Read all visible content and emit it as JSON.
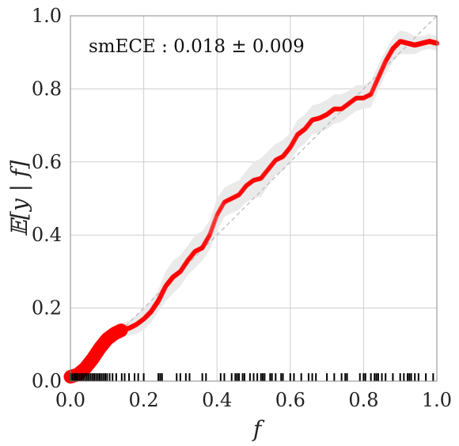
{
  "chart_data": {
    "type": "line",
    "title": "",
    "annotation": "smECE : 0.018 ± 0.009",
    "xlabel": "f",
    "ylabel": "𝔼[y | f]",
    "xlim": [
      0.0,
      1.0
    ],
    "ylim": [
      0.0,
      1.0
    ],
    "xticks": [
      "0.0",
      "0.2",
      "0.4",
      "0.6",
      "0.8",
      "1.0"
    ],
    "yticks": [
      "0.0",
      "0.2",
      "0.4",
      "0.6",
      "0.8",
      "1.0"
    ],
    "grid": true,
    "diagonal": [
      [
        0.0,
        0.0
      ],
      [
        1.0,
        1.0
      ]
    ],
    "curve": {
      "x": [
        0.0,
        0.02,
        0.04,
        0.06,
        0.08,
        0.1,
        0.12,
        0.14,
        0.16,
        0.18,
        0.2,
        0.22,
        0.24,
        0.26,
        0.28,
        0.3,
        0.32,
        0.34,
        0.36,
        0.38,
        0.4,
        0.42,
        0.44,
        0.46,
        0.48,
        0.5,
        0.52,
        0.54,
        0.56,
        0.58,
        0.6,
        0.62,
        0.64,
        0.66,
        0.68,
        0.7,
        0.72,
        0.74,
        0.76,
        0.78,
        0.8,
        0.82,
        0.84,
        0.86,
        0.88,
        0.9,
        0.92,
        0.94,
        0.96,
        0.98,
        1.0
      ],
      "y": [
        0.012,
        0.018,
        0.035,
        0.06,
        0.09,
        0.115,
        0.13,
        0.14,
        0.145,
        0.155,
        0.17,
        0.19,
        0.22,
        0.26,
        0.285,
        0.3,
        0.33,
        0.355,
        0.365,
        0.4,
        0.455,
        0.49,
        0.5,
        0.51,
        0.535,
        0.55,
        0.555,
        0.58,
        0.605,
        0.615,
        0.64,
        0.675,
        0.69,
        0.715,
        0.72,
        0.73,
        0.745,
        0.745,
        0.76,
        0.775,
        0.775,
        0.785,
        0.83,
        0.875,
        0.91,
        0.93,
        0.925,
        0.92,
        0.925,
        0.93,
        0.925
      ],
      "marker_weight": [
        1.0,
        1.0,
        1.0,
        1.0,
        1.0,
        1.0,
        0.95,
        0.7,
        0.55,
        0.5,
        0.5,
        0.55,
        0.6,
        0.55,
        0.55,
        0.5,
        0.5,
        0.5,
        0.5,
        0.45,
        0.4,
        0.4,
        0.45,
        0.45,
        0.45,
        0.45,
        0.45,
        0.45,
        0.45,
        0.5,
        0.5,
        0.5,
        0.5,
        0.5,
        0.5,
        0.5,
        0.5,
        0.45,
        0.45,
        0.45,
        0.45,
        0.45,
        0.5,
        0.5,
        0.55,
        0.55,
        0.55,
        0.6,
        0.6,
        0.6,
        0.6
      ],
      "color": "#ff0000"
    },
    "band": {
      "x": [
        0.0,
        0.02,
        0.04,
        0.06,
        0.08,
        0.1,
        0.12,
        0.14,
        0.16,
        0.18,
        0.2,
        0.22,
        0.24,
        0.26,
        0.28,
        0.3,
        0.32,
        0.34,
        0.36,
        0.38,
        0.4,
        0.42,
        0.44,
        0.46,
        0.48,
        0.5,
        0.52,
        0.54,
        0.56,
        0.58,
        0.6,
        0.62,
        0.64,
        0.66,
        0.68,
        0.7,
        0.72,
        0.74,
        0.76,
        0.78,
        0.8,
        0.82,
        0.84,
        0.86,
        0.88,
        0.9,
        0.92,
        0.94,
        0.96,
        0.98,
        1.0
      ],
      "lower": [
        0.005,
        0.01,
        0.025,
        0.05,
        0.08,
        0.1,
        0.115,
        0.12,
        0.125,
        0.13,
        0.14,
        0.16,
        0.19,
        0.22,
        0.24,
        0.26,
        0.29,
        0.31,
        0.33,
        0.36,
        0.41,
        0.45,
        0.46,
        0.47,
        0.49,
        0.5,
        0.505,
        0.535,
        0.565,
        0.575,
        0.6,
        0.635,
        0.65,
        0.675,
        0.68,
        0.69,
        0.705,
        0.71,
        0.725,
        0.74,
        0.745,
        0.75,
        0.795,
        0.84,
        0.875,
        0.895,
        0.895,
        0.895,
        0.905,
        0.91,
        0.905
      ],
      "upper": [
        0.02,
        0.026,
        0.045,
        0.07,
        0.1,
        0.13,
        0.145,
        0.16,
        0.165,
        0.18,
        0.2,
        0.22,
        0.25,
        0.3,
        0.33,
        0.345,
        0.37,
        0.4,
        0.41,
        0.44,
        0.5,
        0.53,
        0.54,
        0.55,
        0.575,
        0.6,
        0.61,
        0.63,
        0.65,
        0.66,
        0.68,
        0.715,
        0.73,
        0.755,
        0.76,
        0.77,
        0.785,
        0.785,
        0.795,
        0.81,
        0.81,
        0.82,
        0.865,
        0.905,
        0.94,
        0.96,
        0.955,
        0.945,
        0.945,
        0.95,
        0.945
      ],
      "color": "#e8e8e8"
    },
    "rug": [
      0.0,
      0.005,
      0.01,
      0.013,
      0.017,
      0.02,
      0.025,
      0.03,
      0.035,
      0.04,
      0.045,
      0.05,
      0.055,
      0.06,
      0.065,
      0.07,
      0.075,
      0.08,
      0.085,
      0.09,
      0.095,
      0.1,
      0.107,
      0.115,
      0.125,
      0.14,
      0.148,
      0.16,
      0.175,
      0.185,
      0.2,
      0.24,
      0.245,
      0.25,
      0.29,
      0.3,
      0.315,
      0.325,
      0.36,
      0.37,
      0.41,
      0.42,
      0.44,
      0.45,
      0.455,
      0.46,
      0.47,
      0.475,
      0.49,
      0.5,
      0.51,
      0.52,
      0.525,
      0.53,
      0.545,
      0.55,
      0.56,
      0.575,
      0.58,
      0.6,
      0.61,
      0.63,
      0.65,
      0.66,
      0.67,
      0.7,
      0.72,
      0.74,
      0.75,
      0.755,
      0.79,
      0.8,
      0.805,
      0.82,
      0.83,
      0.835,
      0.84,
      0.85,
      0.86,
      0.88,
      0.9,
      0.91,
      0.92,
      0.925,
      0.93,
      0.94,
      0.95,
      0.97,
      0.99
    ]
  }
}
